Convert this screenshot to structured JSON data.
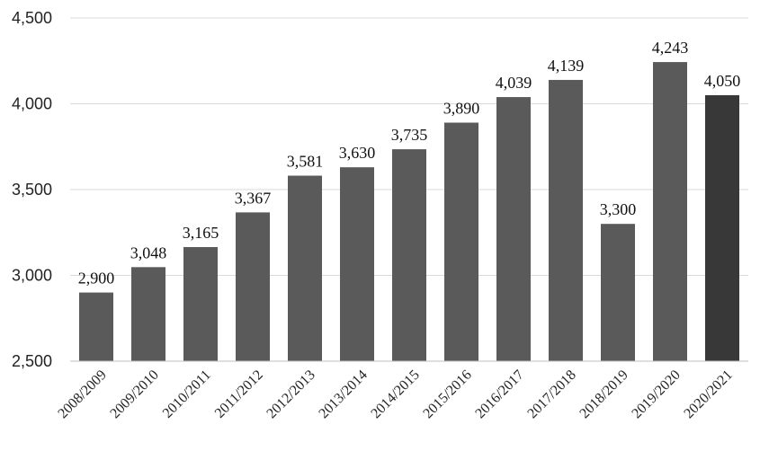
{
  "chart_data": {
    "type": "bar",
    "title": "",
    "xlabel": "",
    "ylabel": "",
    "categories": [
      "2008/2009",
      "2009/2010",
      "2010/2011",
      "2011/2012",
      "2012/2013",
      "2013/2014",
      "2014/2015",
      "2015/2016",
      "2016/2017",
      "2017/2018",
      "2018/2019",
      "2019/2020",
      "2020/2021"
    ],
    "values": [
      2900,
      3048,
      3165,
      3367,
      3581,
      3630,
      3735,
      3890,
      4039,
      4139,
      3300,
      4243,
      4050
    ],
    "value_labels": [
      "2,900",
      "3,048",
      "3,165",
      "3,367",
      "3,581",
      "3,630",
      "3,735",
      "3,890",
      "4,039",
      "4,139",
      "3,300",
      "4,243",
      "4,050"
    ],
    "ylim": [
      2500,
      4500
    ],
    "yticks": [
      2500,
      3000,
      3500,
      4000,
      4500
    ],
    "ytick_labels": [
      "2,500",
      "3,000",
      "3,500",
      "4,000",
      "4,500"
    ],
    "grid": true,
    "legend": "none",
    "colors": {
      "bar": "#5a5a5a",
      "bar_highlight": "#383838",
      "grid": "#d9d9d9"
    },
    "highlight_index": 12
  }
}
